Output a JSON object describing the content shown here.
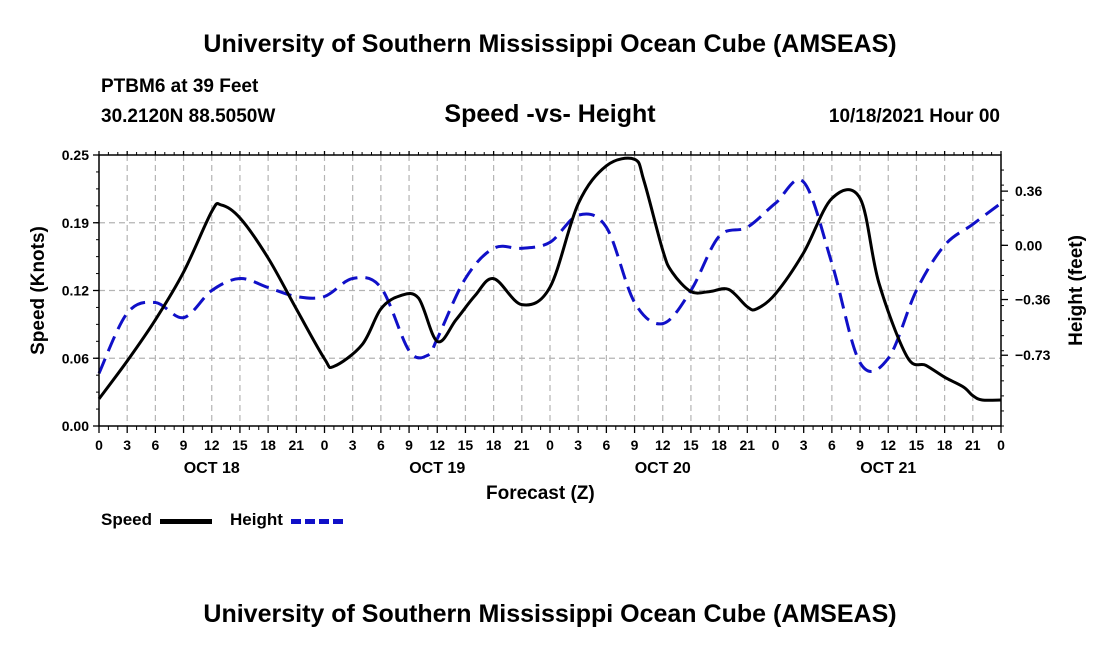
{
  "page": {
    "title": "University of Southern Mississippi Ocean Cube (AMSEAS)",
    "station": "PTBM6 at 39 Feet",
    "coords": "30.2120N  88.5050W",
    "subtitle": "Speed -vs- Height",
    "date": "10/18/2021 Hour 00",
    "footer_title": "University of Southern Mississippi Ocean Cube (AMSEAS)"
  },
  "colors": {
    "speed": "#000000",
    "height": "#1010c8",
    "grid": "#b4b4b4"
  },
  "chart_data": {
    "type": "line",
    "title": "Speed -vs- Height",
    "xlabel": "Forecast (Z)",
    "ylabel": "Speed (Knots)",
    "y2label": "Height (feet)",
    "x_range": [
      0,
      96
    ],
    "x_tick_step": 3,
    "x_tick_labels": [
      "0",
      "3",
      "6",
      "9",
      "12",
      "15",
      "18",
      "21",
      "0",
      "3",
      "6",
      "9",
      "12",
      "15",
      "18",
      "21",
      "0",
      "3",
      "6",
      "9",
      "12",
      "15",
      "18",
      "21",
      "0",
      "3",
      "6",
      "9",
      "12",
      "15",
      "18",
      "21",
      "0"
    ],
    "day_labels": [
      {
        "hour": 12,
        "label": "OCT 18"
      },
      {
        "hour": 36,
        "label": "OCT 19"
      },
      {
        "hour": 60,
        "label": "OCT 20"
      },
      {
        "hour": 84,
        "label": "OCT 21"
      }
    ],
    "y_left": {
      "range": [
        0,
        0.25
      ],
      "ticks": [
        "0.00",
        "0.06",
        "0.12",
        "0.19",
        "0.25"
      ]
    },
    "y_right": {
      "range": [
        -1.2,
        0.6
      ],
      "tick_values": [
        0.36,
        0.0,
        -0.36,
        -0.73
      ],
      "tick_labels": [
        "0.36",
        "0.00",
        "−0.36",
        "−0.73"
      ]
    },
    "legend": [
      {
        "label": "Speed",
        "style": "solid"
      },
      {
        "label": "Height",
        "style": "dashed"
      }
    ],
    "series": [
      {
        "name": "Speed",
        "axis": "left",
        "style": "solid",
        "x": [
          0,
          3,
          6,
          9,
          12,
          13,
          15,
          18,
          21,
          24,
          25,
          28,
          30,
          32,
          34,
          36,
          38,
          40,
          42,
          45,
          48,
          51,
          54,
          57,
          58,
          60,
          61,
          63,
          65,
          67,
          69,
          70,
          72,
          75,
          78,
          81,
          83,
          86,
          88,
          90,
          92,
          93,
          94,
          96
        ],
        "values": [
          0.025,
          0.06,
          0.098,
          0.142,
          0.198,
          0.204,
          0.192,
          0.155,
          0.108,
          0.062,
          0.055,
          0.075,
          0.108,
          0.12,
          0.118,
          0.078,
          0.098,
          0.12,
          0.136,
          0.112,
          0.128,
          0.205,
          0.24,
          0.246,
          0.226,
          0.162,
          0.142,
          0.124,
          0.124,
          0.126,
          0.11,
          0.108,
          0.122,
          0.16,
          0.21,
          0.21,
          0.132,
          0.064,
          0.056,
          0.045,
          0.036,
          0.028,
          0.024,
          0.024
        ]
      },
      {
        "name": "Height",
        "axis": "right",
        "style": "dashed",
        "x": [
          0,
          3,
          6,
          9,
          12,
          15,
          18,
          21,
          24,
          27,
          30,
          33,
          35,
          36,
          39,
          42,
          45,
          48,
          51,
          54,
          57,
          60,
          63,
          66,
          69,
          72,
          75,
          78,
          81,
          84,
          87,
          90,
          93,
          96
        ],
        "values": [
          -0.85,
          -0.45,
          -0.38,
          -0.48,
          -0.3,
          -0.22,
          -0.28,
          -0.34,
          -0.34,
          -0.22,
          -0.28,
          -0.7,
          -0.73,
          -0.62,
          -0.22,
          -0.02,
          -0.02,
          0.02,
          0.2,
          0.12,
          -0.38,
          -0.52,
          -0.3,
          0.06,
          0.12,
          0.28,
          0.42,
          -0.12,
          -0.78,
          -0.75,
          -0.3,
          0.0,
          0.14,
          0.28
        ]
      }
    ]
  }
}
